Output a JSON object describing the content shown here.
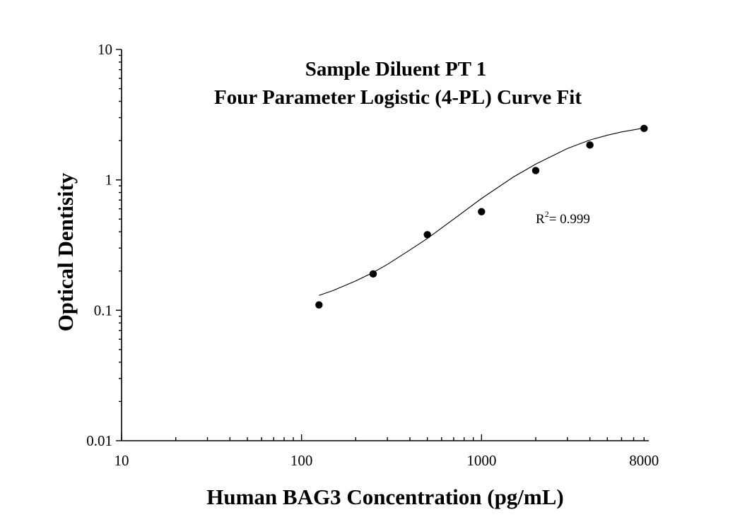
{
  "chart_data": {
    "type": "scatter",
    "title": "Sample Diluent PT 1",
    "subtitle": "Four Parameter Logistic (4-PL) Curve Fit",
    "xlabel": "Human BAG3 Concentration (pg/mL)",
    "ylabel": "Optical Dentisity",
    "x_scale": "log",
    "y_scale": "log",
    "xlim": [
      10,
      8500
    ],
    "ylim": [
      0.01,
      10
    ],
    "x_ticks": [
      {
        "value": 10,
        "label": "10"
      },
      {
        "value": 100,
        "label": "100"
      },
      {
        "value": 1000,
        "label": "1000"
      },
      {
        "value": 8000,
        "label": "8000"
      }
    ],
    "y_ticks": [
      {
        "value": 0.01,
        "label": "0.01"
      },
      {
        "value": 0.1,
        "label": "0.1"
      },
      {
        "value": 1,
        "label": "1"
      },
      {
        "value": 10,
        "label": "10"
      }
    ],
    "grid": false,
    "points": [
      {
        "x": 125,
        "y": 0.11
      },
      {
        "x": 250,
        "y": 0.19
      },
      {
        "x": 500,
        "y": 0.38
      },
      {
        "x": 1000,
        "y": 0.57
      },
      {
        "x": 2000,
        "y": 1.18
      },
      {
        "x": 4000,
        "y": 1.85
      },
      {
        "x": 8000,
        "y": 2.48
      }
    ],
    "fit_curve": {
      "x": [
        125,
        150,
        200,
        250,
        300,
        400,
        500,
        700,
        1000,
        1500,
        2000,
        3000,
        4000,
        5000,
        6000,
        8000
      ],
      "y": [
        0.13,
        0.142,
        0.168,
        0.195,
        0.225,
        0.29,
        0.355,
        0.5,
        0.72,
        1.05,
        1.32,
        1.74,
        2.02,
        2.2,
        2.33,
        2.5
      ]
    },
    "annotation": {
      "base": "R",
      "sup": "2",
      "text": "= 0.999"
    }
  }
}
